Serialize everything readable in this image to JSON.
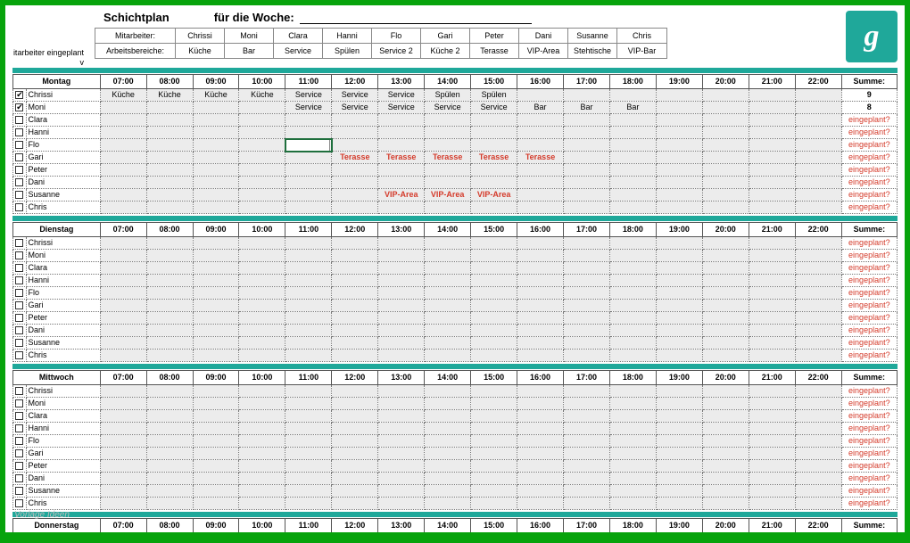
{
  "title_left": "Schichtplan",
  "title_right": "für die Woche:",
  "side_label_1": "itarbeiter eingeplant",
  "side_label_2": "v",
  "legend_head_label": "Mitarbeiter:",
  "legend_sub_label": "Arbeitsbereiche:",
  "staff": [
    "Chrissi",
    "Moni",
    "Clara",
    "Hanni",
    "Flo",
    "Gari",
    "Peter",
    "Dani",
    "Susanne",
    "Chris"
  ],
  "areas": [
    "Küche",
    "Bar",
    "Service",
    "Spülen",
    "Service 2",
    "Küche 2",
    "Terasse",
    "VIP-Area",
    "Stehtische",
    "VIP-Bar"
  ],
  "hours": [
    "07:00",
    "08:00",
    "09:00",
    "10:00",
    "11:00",
    "12:00",
    "13:00",
    "14:00",
    "15:00",
    "16:00",
    "17:00",
    "18:00",
    "19:00",
    "20:00",
    "21:00",
    "22:00"
  ],
  "sum_label": "Summe:",
  "eingeplant": "eingeplant?",
  "watermark": "Vorlage Ideen",
  "logo_text": "g",
  "days": [
    {
      "name": "Montag",
      "rows": [
        {
          "emp": "Chrissi",
          "checked": true,
          "sum": "9",
          "warn": false,
          "slots": [
            "Küche",
            "Küche",
            "Küche",
            "Küche",
            "Service",
            "Service",
            "Service",
            "Spülen",
            "Spülen",
            "",
            "",
            "",
            "",
            "",
            "",
            ""
          ]
        },
        {
          "emp": "Moni",
          "checked": true,
          "sum": "8",
          "warn": false,
          "slots": [
            "",
            "",
            "",
            "",
            "Service",
            "Service",
            "Service",
            "Service",
            "Service",
            "Bar",
            "Bar",
            "Bar",
            "",
            "",
            "",
            ""
          ]
        },
        {
          "emp": "Clara",
          "checked": false,
          "sum": "eingeplant?",
          "warn": true,
          "slots": [
            "",
            "",
            "",
            "",
            "",
            "",
            "",
            "",
            "",
            "",
            "",
            "",
            "",
            "",
            "",
            ""
          ]
        },
        {
          "emp": "Hanni",
          "checked": false,
          "sum": "eingeplant?",
          "warn": true,
          "slots": [
            "",
            "",
            "",
            "",
            "",
            "",
            "",
            "",
            "",
            "",
            "",
            "",
            "",
            "",
            "",
            ""
          ]
        },
        {
          "emp": "Flo",
          "checked": false,
          "sum": "eingeplant?",
          "warn": true,
          "selected": 4,
          "slots": [
            "",
            "",
            "",
            "",
            "",
            "",
            "",
            "",
            "",
            "",
            "",
            "",
            "",
            "",
            "",
            ""
          ]
        },
        {
          "emp": "Gari",
          "checked": false,
          "sum": "eingeplant?",
          "warn": true,
          "slots": [
            "",
            "",
            "",
            "",
            "",
            "Terasse",
            "Terasse",
            "Terasse",
            "Terasse",
            "Terasse",
            "",
            "",
            "",
            "",
            "",
            ""
          ],
          "red": true
        },
        {
          "emp": "Peter",
          "checked": false,
          "sum": "eingeplant?",
          "warn": true,
          "slots": [
            "",
            "",
            "",
            "",
            "",
            "",
            "",
            "",
            "",
            "",
            "",
            "",
            "",
            "",
            "",
            ""
          ]
        },
        {
          "emp": "Dani",
          "checked": false,
          "sum": "eingeplant?",
          "warn": true,
          "slots": [
            "",
            "",
            "",
            "",
            "",
            "",
            "",
            "",
            "",
            "",
            "",
            "",
            "",
            "",
            "",
            ""
          ]
        },
        {
          "emp": "Susanne",
          "checked": false,
          "sum": "eingeplant?",
          "warn": true,
          "slots": [
            "",
            "",
            "",
            "",
            "",
            "",
            "VIP-Area",
            "VIP-Area",
            "VIP-Area",
            "",
            "",
            "",
            "",
            "",
            "",
            ""
          ],
          "red": true
        },
        {
          "emp": "Chris",
          "checked": false,
          "sum": "eingeplant?",
          "warn": true,
          "slots": [
            "",
            "",
            "",
            "",
            "",
            "",
            "",
            "",
            "",
            "",
            "",
            "",
            "",
            "",
            "",
            ""
          ]
        }
      ]
    },
    {
      "name": "Dienstag",
      "rows": [
        {
          "emp": "Chrissi",
          "checked": false,
          "sum": "eingeplant?",
          "warn": true,
          "slots": [
            "",
            "",
            "",
            "",
            "",
            "",
            "",
            "",
            "",
            "",
            "",
            "",
            "",
            "",
            "",
            ""
          ]
        },
        {
          "emp": "Moni",
          "checked": false,
          "sum": "eingeplant?",
          "warn": true,
          "slots": [
            "",
            "",
            "",
            "",
            "",
            "",
            "",
            "",
            "",
            "",
            "",
            "",
            "",
            "",
            "",
            ""
          ]
        },
        {
          "emp": "Clara",
          "checked": false,
          "sum": "eingeplant?",
          "warn": true,
          "slots": [
            "",
            "",
            "",
            "",
            "",
            "",
            "",
            "",
            "",
            "",
            "",
            "",
            "",
            "",
            "",
            ""
          ]
        },
        {
          "emp": "Hanni",
          "checked": false,
          "sum": "eingeplant?",
          "warn": true,
          "slots": [
            "",
            "",
            "",
            "",
            "",
            "",
            "",
            "",
            "",
            "",
            "",
            "",
            "",
            "",
            "",
            ""
          ]
        },
        {
          "emp": "Flo",
          "checked": false,
          "sum": "eingeplant?",
          "warn": true,
          "slots": [
            "",
            "",
            "",
            "",
            "",
            "",
            "",
            "",
            "",
            "",
            "",
            "",
            "",
            "",
            "",
            ""
          ]
        },
        {
          "emp": "Gari",
          "checked": false,
          "sum": "eingeplant?",
          "warn": true,
          "slots": [
            "",
            "",
            "",
            "",
            "",
            "",
            "",
            "",
            "",
            "",
            "",
            "",
            "",
            "",
            "",
            ""
          ]
        },
        {
          "emp": "Peter",
          "checked": false,
          "sum": "eingeplant?",
          "warn": true,
          "slots": [
            "",
            "",
            "",
            "",
            "",
            "",
            "",
            "",
            "",
            "",
            "",
            "",
            "",
            "",
            "",
            ""
          ]
        },
        {
          "emp": "Dani",
          "checked": false,
          "sum": "eingeplant?",
          "warn": true,
          "slots": [
            "",
            "",
            "",
            "",
            "",
            "",
            "",
            "",
            "",
            "",
            "",
            "",
            "",
            "",
            "",
            ""
          ]
        },
        {
          "emp": "Susanne",
          "checked": false,
          "sum": "eingeplant?",
          "warn": true,
          "slots": [
            "",
            "",
            "",
            "",
            "",
            "",
            "",
            "",
            "",
            "",
            "",
            "",
            "",
            "",
            "",
            ""
          ]
        },
        {
          "emp": "Chris",
          "checked": false,
          "sum": "eingeplant?",
          "warn": true,
          "slots": [
            "",
            "",
            "",
            "",
            "",
            "",
            "",
            "",
            "",
            "",
            "",
            "",
            "",
            "",
            "",
            ""
          ]
        }
      ]
    },
    {
      "name": "Mittwoch",
      "rows": [
        {
          "emp": "Chrissi",
          "checked": false,
          "sum": "eingeplant?",
          "warn": true,
          "slots": [
            "",
            "",
            "",
            "",
            "",
            "",
            "",
            "",
            "",
            "",
            "",
            "",
            "",
            "",
            "",
            ""
          ]
        },
        {
          "emp": "Moni",
          "checked": false,
          "sum": "eingeplant?",
          "warn": true,
          "slots": [
            "",
            "",
            "",
            "",
            "",
            "",
            "",
            "",
            "",
            "",
            "",
            "",
            "",
            "",
            "",
            ""
          ]
        },
        {
          "emp": "Clara",
          "checked": false,
          "sum": "eingeplant?",
          "warn": true,
          "slots": [
            "",
            "",
            "",
            "",
            "",
            "",
            "",
            "",
            "",
            "",
            "",
            "",
            "",
            "",
            "",
            ""
          ]
        },
        {
          "emp": "Hanni",
          "checked": false,
          "sum": "eingeplant?",
          "warn": true,
          "slots": [
            "",
            "",
            "",
            "",
            "",
            "",
            "",
            "",
            "",
            "",
            "",
            "",
            "",
            "",
            "",
            ""
          ]
        },
        {
          "emp": "Flo",
          "checked": false,
          "sum": "eingeplant?",
          "warn": true,
          "slots": [
            "",
            "",
            "",
            "",
            "",
            "",
            "",
            "",
            "",
            "",
            "",
            "",
            "",
            "",
            "",
            ""
          ]
        },
        {
          "emp": "Gari",
          "checked": false,
          "sum": "eingeplant?",
          "warn": true,
          "slots": [
            "",
            "",
            "",
            "",
            "",
            "",
            "",
            "",
            "",
            "",
            "",
            "",
            "",
            "",
            "",
            ""
          ]
        },
        {
          "emp": "Peter",
          "checked": false,
          "sum": "eingeplant?",
          "warn": true,
          "slots": [
            "",
            "",
            "",
            "",
            "",
            "",
            "",
            "",
            "",
            "",
            "",
            "",
            "",
            "",
            "",
            ""
          ]
        },
        {
          "emp": "Dani",
          "checked": false,
          "sum": "eingeplant?",
          "warn": true,
          "slots": [
            "",
            "",
            "",
            "",
            "",
            "",
            "",
            "",
            "",
            "",
            "",
            "",
            "",
            "",
            "",
            ""
          ]
        },
        {
          "emp": "Susanne",
          "checked": false,
          "sum": "eingeplant?",
          "warn": true,
          "slots": [
            "",
            "",
            "",
            "",
            "",
            "",
            "",
            "",
            "",
            "",
            "",
            "",
            "",
            "",
            "",
            ""
          ]
        },
        {
          "emp": "Chris",
          "checked": false,
          "sum": "eingeplant?",
          "warn": true,
          "slots": [
            "",
            "",
            "",
            "",
            "",
            "",
            "",
            "",
            "",
            "",
            "",
            "",
            "",
            "",
            "",
            ""
          ]
        }
      ]
    },
    {
      "name": "Donnerstag",
      "rows": []
    }
  ]
}
